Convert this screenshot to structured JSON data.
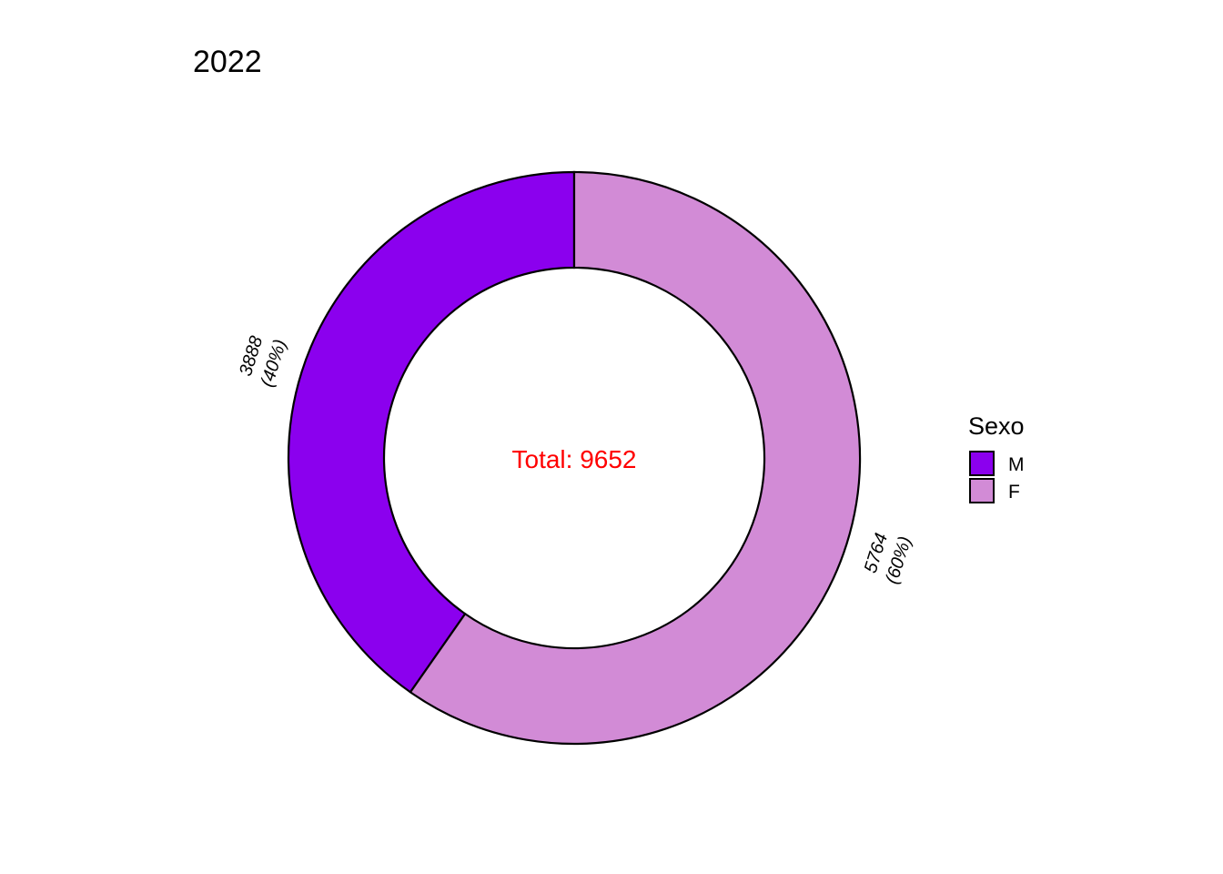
{
  "chart_data": {
    "type": "pie",
    "title": "2022",
    "center_label": "Total: 9652",
    "center_label_color": "#FF0000",
    "slices": [
      {
        "category": "M",
        "value": 3888,
        "value_label": "3888",
        "percent_label": "(40%)",
        "color": "#8B00EE"
      },
      {
        "category": "F",
        "value": 5764,
        "value_label": "5764",
        "percent_label": "(60%)",
        "color": "#D28BD6"
      }
    ],
    "legend": {
      "title": "Sexo",
      "placement": "right",
      "entries": [
        {
          "label": "M",
          "color": "#8B00EE"
        },
        {
          "label": "F",
          "color": "#D28BD6"
        }
      ]
    },
    "outline_color": "#000000"
  }
}
